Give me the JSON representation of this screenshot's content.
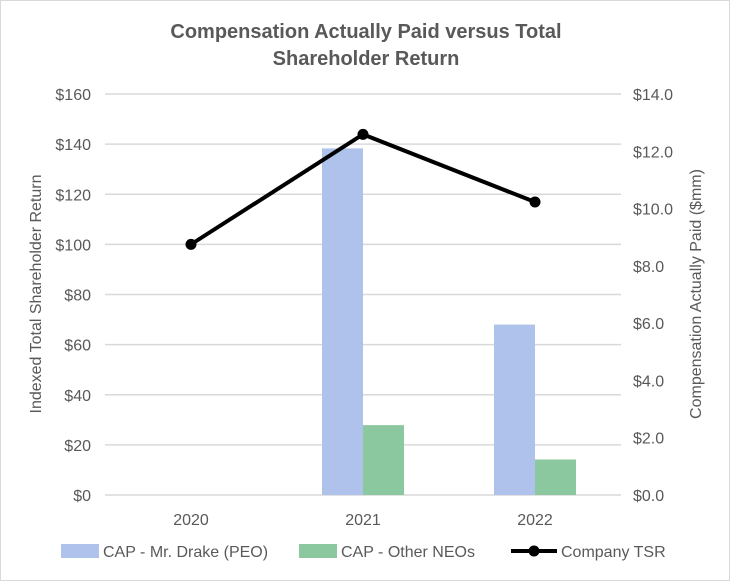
{
  "chart_data": {
    "type": "bar+line",
    "title": "Compensation Actually Paid versus Total Shareholder Return",
    "categories": [
      "2020",
      "2021",
      "2022"
    ],
    "y_left": {
      "label": "Indexed Total Shareholder Return",
      "lim": [
        0,
        160
      ],
      "ticks": [
        "$0",
        "$20",
        "$40",
        "$60",
        "$80",
        "$100",
        "$120",
        "$140",
        "$160"
      ]
    },
    "y_right": {
      "label": "Compensation Actually Paid ($mm)",
      "lim": [
        0,
        14
      ],
      "ticks": [
        "$0.0",
        "$2.0",
        "$4.0",
        "$6.0",
        "$8.0",
        "$10.0",
        "$12.0",
        "$14.0"
      ]
    },
    "grid": true,
    "legend": "bottom",
    "series": [
      {
        "name": "CAP - Mr. Drake (PEO)",
        "type": "bar",
        "axis": "right",
        "color": "#aec2ec",
        "values": [
          null,
          12.1,
          5.95
        ]
      },
      {
        "name": "CAP - Other NEOs",
        "type": "bar",
        "axis": "right",
        "color": "#8bc8a0",
        "values": [
          null,
          2.44,
          1.24
        ]
      },
      {
        "name": "Company TSR",
        "type": "line",
        "axis": "left",
        "color": "#000000",
        "values": [
          100,
          143.9,
          116.9
        ]
      }
    ]
  }
}
